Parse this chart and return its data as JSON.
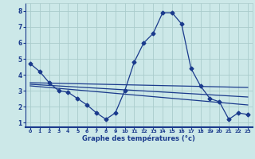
{
  "xlabel": "Graphe des températures (°c)",
  "bg_color": "#cce8e8",
  "grid_color": "#aacccc",
  "line_color": "#1a3a8c",
  "axis_bar_color": "#1a3a8c",
  "xlim": [
    -0.5,
    23.5
  ],
  "ylim": [
    0.7,
    8.5
  ],
  "xticks": [
    0,
    1,
    2,
    3,
    4,
    5,
    6,
    7,
    8,
    9,
    10,
    11,
    12,
    13,
    14,
    15,
    16,
    17,
    18,
    19,
    20,
    21,
    22,
    23
  ],
  "yticks": [
    1,
    2,
    3,
    4,
    5,
    6,
    7,
    8
  ],
  "main_x": [
    0,
    1,
    2,
    3,
    4,
    5,
    6,
    7,
    8,
    9,
    10,
    11,
    12,
    13,
    14,
    15,
    16,
    17,
    18,
    19,
    20,
    21,
    22,
    23
  ],
  "main_y": [
    4.7,
    4.2,
    3.5,
    3.0,
    2.9,
    2.5,
    2.1,
    1.6,
    1.2,
    1.6,
    3.0,
    4.8,
    6.0,
    6.6,
    7.9,
    7.9,
    7.2,
    4.4,
    3.3,
    2.5,
    2.3,
    1.2,
    1.6,
    1.5
  ],
  "line1_x": [
    0,
    23
  ],
  "line1_y": [
    3.5,
    3.2
  ],
  "line2_x": [
    0,
    23
  ],
  "line2_y": [
    3.4,
    2.6
  ],
  "line3_x": [
    0,
    23
  ],
  "line3_y": [
    3.3,
    2.1
  ]
}
